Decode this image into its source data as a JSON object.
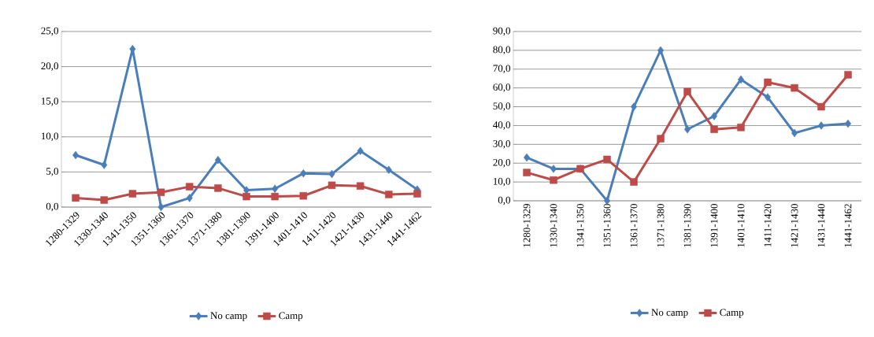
{
  "chart_data": [
    {
      "type": "line",
      "categories": [
        "1280-1329",
        "1330-1340",
        "1341-1350",
        "1351-1360",
        "1361-1370",
        "1371-1380",
        "1381-1390",
        "1391-1400",
        "1401-1410",
        "1411-1420",
        "1421-1430",
        "1431-1440",
        "1441-1462"
      ],
      "series": [
        {
          "name": "No camp",
          "color": "#4a7ebb",
          "marker": "diamond",
          "values": [
            7.4,
            6.0,
            22.5,
            0.0,
            1.3,
            6.7,
            2.4,
            2.6,
            4.8,
            4.7,
            8.0,
            5.3,
            2.5
          ]
        },
        {
          "name": "Camp",
          "color": "#be4b48",
          "marker": "square",
          "values": [
            1.3,
            1.0,
            1.9,
            2.1,
            2.9,
            2.7,
            1.5,
            1.5,
            1.6,
            3.1,
            3.0,
            1.8,
            1.9
          ]
        }
      ],
      "ylim": [
        0,
        25
      ],
      "yticks": [
        {
          "value": 0,
          "label": "0,0"
        },
        {
          "value": 5,
          "label": "5,0"
        },
        {
          "value": 10,
          "label": "10,0"
        },
        {
          "value": 15,
          "label": "15,0"
        },
        {
          "value": 20,
          "label": "20,0"
        },
        {
          "value": 25,
          "label": "25,0"
        }
      ],
      "grid": "y",
      "legend": "bottom"
    },
    {
      "type": "line",
      "categories": [
        "1280-1329",
        "1330-1340",
        "1341-1350",
        "1351-1360",
        "1361-1370",
        "1371-1380",
        "1381-1390",
        "1391-1400",
        "1401-1410",
        "1411-1420",
        "1421-1430",
        "1431-1440",
        "1441-1462"
      ],
      "series": [
        {
          "name": "No camp",
          "color": "#4a7ebb",
          "marker": "diamond",
          "values": [
            23,
            17,
            17,
            0,
            50,
            80,
            38,
            45,
            64.5,
            55,
            36,
            40,
            41
          ]
        },
        {
          "name": "Camp",
          "color": "#be4b48",
          "marker": "square",
          "values": [
            15,
            11,
            17,
            22,
            10,
            33,
            58,
            38,
            39,
            63,
            60,
            50,
            67
          ]
        }
      ],
      "ylim": [
        0,
        90
      ],
      "yticks": [
        {
          "value": 0,
          "label": "0,0"
        },
        {
          "value": 10,
          "label": "10,0"
        },
        {
          "value": 20,
          "label": "20,0"
        },
        {
          "value": 30,
          "label": "30,0"
        },
        {
          "value": 40,
          "label": "40,0"
        },
        {
          "value": 50,
          "label": "50,0"
        },
        {
          "value": 60,
          "label": "60,0"
        },
        {
          "value": 70,
          "label": "70,0"
        },
        {
          "value": 80,
          "label": "80,0"
        },
        {
          "value": 90,
          "label": "90,0"
        }
      ],
      "grid": "y",
      "legend": "bottom"
    }
  ]
}
